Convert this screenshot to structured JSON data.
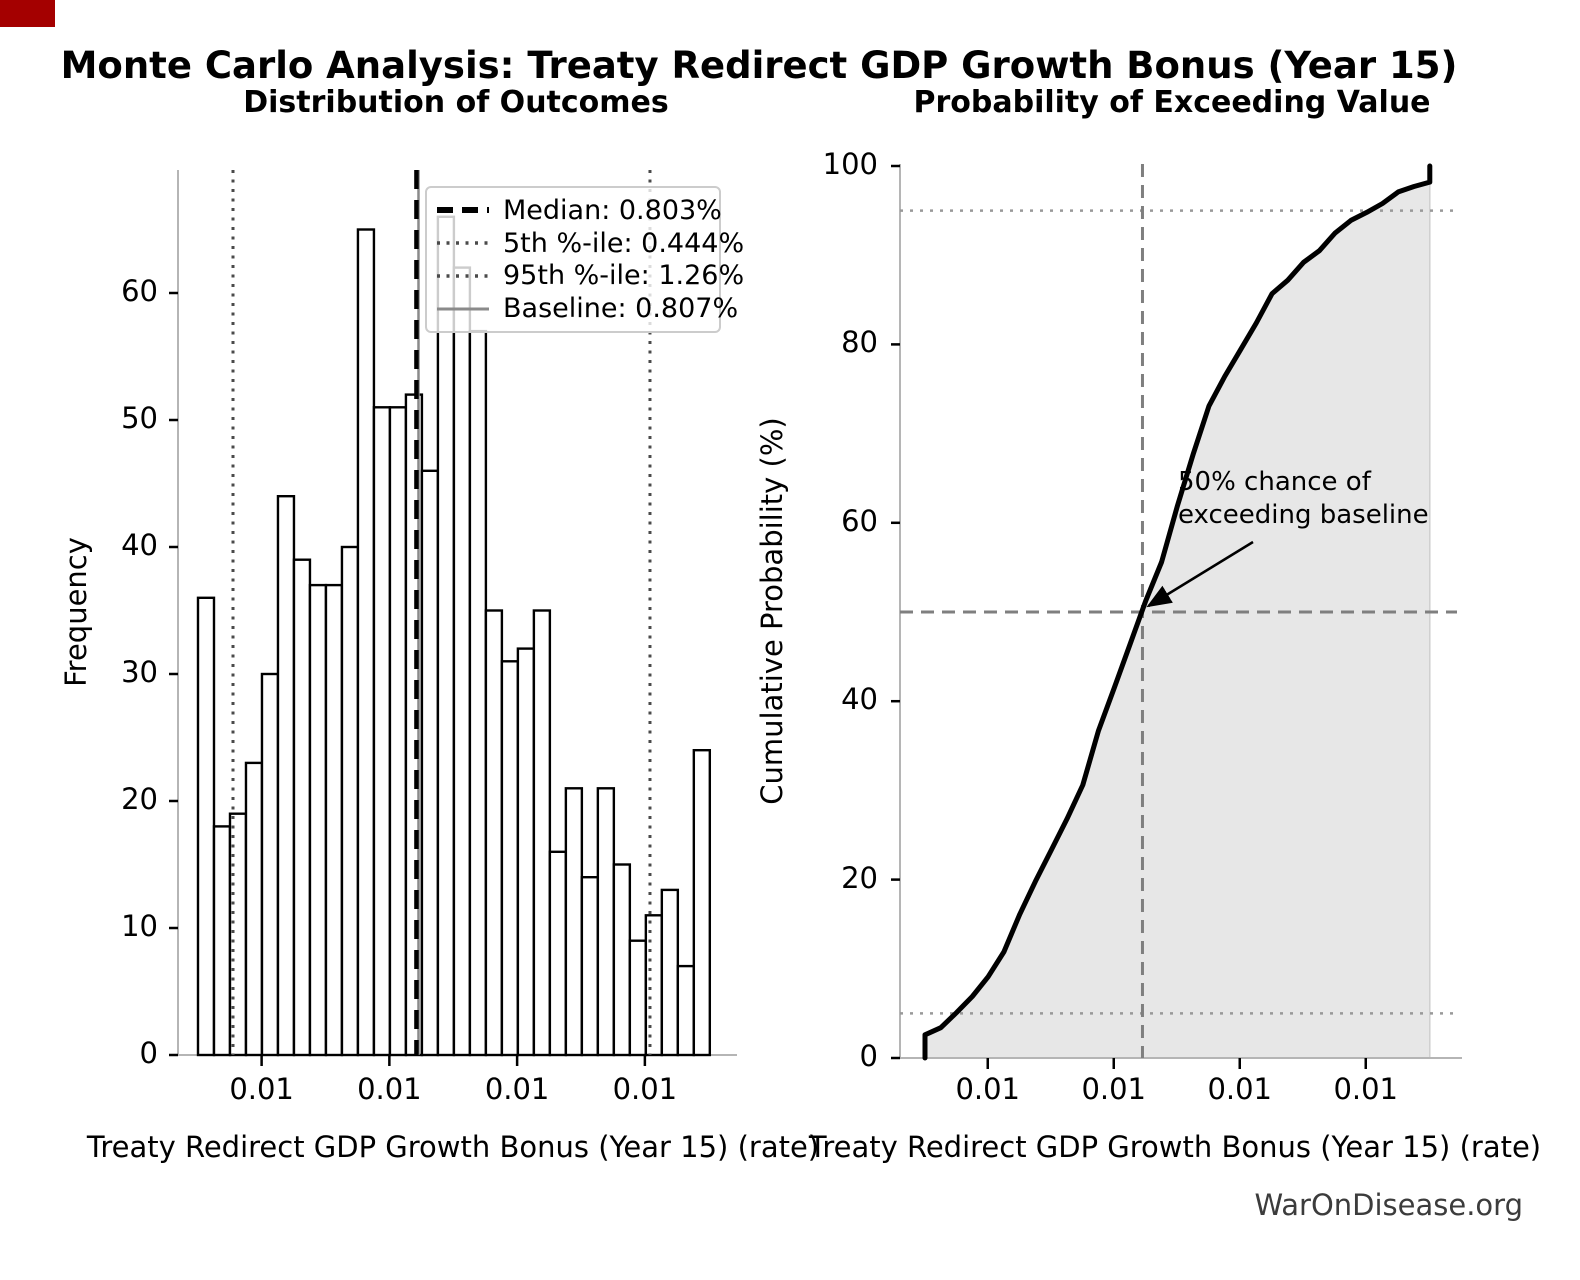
{
  "page": {
    "main_title": "Monte Carlo Analysis: Treaty Redirect GDP Growth Bonus (Year 15)",
    "watermark": "WarOnDisease.org",
    "corner_color": "#a40000"
  },
  "chart_data": [
    {
      "type": "bar",
      "subtype": "histogram",
      "title": "Distribution of Outcomes",
      "xlabel": "Treaty Redirect GDP Growth Bonus (Year 15) (rate)",
      "ylabel": "Frequency",
      "xlim": [
        0.00336,
        0.01414
      ],
      "ylim": [
        0,
        69
      ],
      "grid": false,
      "y_ticks": [
        0,
        10,
        20,
        30,
        40,
        50,
        60
      ],
      "x_ticks": [
        {
          "value": 0.005,
          "label": "0.01"
        },
        {
          "value": 0.0075,
          "label": "0.01"
        },
        {
          "value": 0.01,
          "label": "0.01"
        },
        {
          "value": 0.0125,
          "label": "0.01"
        }
      ],
      "bins": {
        "start": 0.003755,
        "width": 0.000313,
        "counts": [
          36,
          18,
          19,
          23,
          30,
          44,
          39,
          37,
          37,
          40,
          65,
          51,
          51,
          52,
          46,
          66,
          62,
          57,
          35,
          31,
          32,
          35,
          16,
          21,
          14,
          21,
          15,
          9,
          11,
          13,
          7,
          24
        ]
      },
      "reference_lines": [
        {
          "name": "baseline",
          "value": 0.00807,
          "style": "solid-gray",
          "color": "#8a8a8a"
        },
        {
          "name": "p95",
          "value": 0.0126,
          "style": "dotted-gray",
          "color": "#4a4a4a"
        },
        {
          "name": "p5",
          "value": 0.00444,
          "style": "dotted-gray",
          "color": "#4a4a4a"
        },
        {
          "name": "median",
          "value": 0.00803,
          "style": "dashed-black-thick",
          "color": "#000000"
        }
      ],
      "legend": [
        {
          "name": "median",
          "label": "Median: 0.803%"
        },
        {
          "name": "p5",
          "label": "5th %-ile: 0.444%"
        },
        {
          "name": "p95",
          "label": "95th %-ile: 1.26%"
        },
        {
          "name": "baseline",
          "label": "Baseline: 0.807%"
        }
      ]
    },
    {
      "type": "line",
      "subtype": "ecdf",
      "title": "Probability of Exceeding Value",
      "xlabel": "Treaty Redirect GDP Growth Bonus (Year 15) (rate)",
      "ylabel": "Cumulative Probability (%)",
      "xlim": [
        0.00326,
        0.01427
      ],
      "ylim": [
        0,
        100
      ],
      "grid": false,
      "fill_color": "#e7e7e7",
      "line_color": "#000000",
      "y_ticks": [
        0,
        20,
        40,
        60,
        80,
        100
      ],
      "x_ticks": [
        {
          "value": 0.005,
          "label": "0.01"
        },
        {
          "value": 0.0075,
          "label": "0.01"
        },
        {
          "value": 0.01,
          "label": "0.01"
        },
        {
          "value": 0.0125,
          "label": "0.01"
        }
      ],
      "curve": [
        [
          0.003755,
          0
        ],
        [
          0.003755,
          2.6
        ],
        [
          0.004068,
          3.4
        ],
        [
          0.004381,
          5.1
        ],
        [
          0.004694,
          6.9
        ],
        [
          0.005007,
          9.1
        ],
        [
          0.00532,
          11.9
        ],
        [
          0.005633,
          16.1
        ],
        [
          0.005946,
          19.8
        ],
        [
          0.006259,
          23.3
        ],
        [
          0.006572,
          26.8
        ],
        [
          0.006885,
          30.6
        ],
        [
          0.007198,
          36.7
        ],
        [
          0.007511,
          41.5
        ],
        [
          0.007824,
          46.4
        ],
        [
          0.008137,
          51.3
        ],
        [
          0.00845,
          55.6
        ],
        [
          0.008763,
          61.9
        ],
        [
          0.009076,
          67.7
        ],
        [
          0.009389,
          73.1
        ],
        [
          0.009702,
          76.4
        ],
        [
          0.010015,
          79.4
        ],
        [
          0.010328,
          82.4
        ],
        [
          0.010641,
          85.7
        ],
        [
          0.010954,
          87.2
        ],
        [
          0.011267,
          89.2
        ],
        [
          0.01158,
          90.5
        ],
        [
          0.011893,
          92.5
        ],
        [
          0.012206,
          93.9
        ],
        [
          0.012519,
          94.8
        ],
        [
          0.012832,
          95.8
        ],
        [
          0.013145,
          97.1
        ],
        [
          0.013458,
          97.7
        ],
        [
          0.013771,
          98.2
        ],
        [
          0.013771,
          100
        ]
      ],
      "guides": {
        "dotted_horizontal": [
          5,
          95
        ],
        "dashed_horizontal": 50,
        "dashed_vertical": 0.00807
      },
      "annotation": {
        "line1": "50% chance of",
        "line2": "exceeding baseline",
        "arrow_to_x": 0.00807,
        "arrow_to_y": 50
      }
    }
  ]
}
